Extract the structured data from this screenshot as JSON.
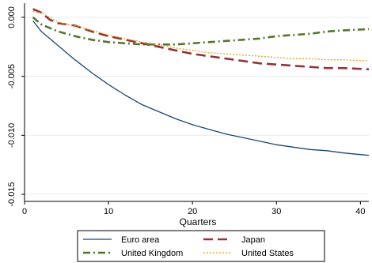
{
  "chart_data": {
    "type": "line",
    "xlabel": "Quarters",
    "ylabel": "",
    "xlim": [
      0,
      41
    ],
    "ylim": [
      -0.0156,
      0.0012
    ],
    "x_ticks": [
      0,
      10,
      20,
      30,
      40
    ],
    "x_tick_labels": [
      "0",
      "10",
      "20",
      "30",
      "40"
    ],
    "y_ticks": [
      0.0,
      -0.005,
      -0.01,
      -0.015
    ],
    "y_tick_labels": [
      "0.000",
      "-0.005",
      "-0.010",
      "-0.015"
    ],
    "grid": true,
    "legend_position": "bottom",
    "series": [
      {
        "name": "Euro area",
        "color": "#1a476f",
        "style": "solid",
        "x": [
          1,
          2,
          3,
          4,
          5,
          6,
          8,
          10,
          12,
          14,
          16,
          18,
          20,
          22,
          24,
          26,
          28,
          30,
          32,
          34,
          36,
          38,
          41
        ],
        "y": [
          -0.0003,
          -0.0012,
          -0.0018,
          -0.0024,
          -0.003,
          -0.0036,
          -0.0047,
          -0.0057,
          -0.0066,
          -0.0074,
          -0.008,
          -0.0086,
          -0.0091,
          -0.0095,
          -0.0099,
          -0.0102,
          -0.0105,
          -0.0108,
          -0.011,
          -0.0112,
          -0.0113,
          -0.0115,
          -0.0117
        ]
      },
      {
        "name": "Japan",
        "color": "#90353b",
        "style": "dashed",
        "x": [
          1,
          2,
          3,
          4,
          5,
          6,
          8,
          10,
          12,
          14,
          16,
          18,
          20,
          22,
          24,
          26,
          28,
          30,
          32,
          34,
          36,
          38,
          41
        ],
        "y": [
          0.0007,
          0.0004,
          -0.0002,
          -0.0005,
          -0.0006,
          -0.0007,
          -0.0012,
          -0.0016,
          -0.0019,
          -0.0022,
          -0.0025,
          -0.0028,
          -0.0031,
          -0.0033,
          -0.0035,
          -0.0037,
          -0.0039,
          -0.004,
          -0.0041,
          -0.0042,
          -0.0043,
          -0.0043,
          -0.0044
        ]
      },
      {
        "name": "United Kingdom",
        "color": "#55752f",
        "style": "dash-dot",
        "x": [
          1,
          2,
          3,
          4,
          5,
          6,
          8,
          10,
          12,
          14,
          16,
          18,
          20,
          22,
          24,
          26,
          28,
          30,
          32,
          34,
          36,
          38,
          41
        ],
        "y": [
          0.0,
          -0.0006,
          -0.0009,
          -0.0012,
          -0.0014,
          -0.0016,
          -0.0019,
          -0.0021,
          -0.0022,
          -0.0023,
          -0.0023,
          -0.0023,
          -0.0022,
          -0.0021,
          -0.002,
          -0.0019,
          -0.0018,
          -0.0016,
          -0.0015,
          -0.0014,
          -0.0012,
          -0.0011,
          -0.001
        ]
      },
      {
        "name": "United States",
        "color": "#e8a21b",
        "style": "dotted",
        "x": [
          1,
          2,
          3,
          4,
          5,
          6,
          8,
          10,
          12,
          14,
          16,
          18,
          20,
          22,
          24,
          26,
          28,
          30,
          32,
          34,
          36,
          38,
          41
        ],
        "y": [
          0.0005,
          0.0004,
          0.0,
          -0.0004,
          -0.0006,
          -0.0007,
          -0.0011,
          -0.0015,
          -0.0018,
          -0.0021,
          -0.0023,
          -0.0026,
          -0.0028,
          -0.003,
          -0.0031,
          -0.0032,
          -0.0033,
          -0.0034,
          -0.0035,
          -0.0035,
          -0.0036,
          -0.0036,
          -0.0037
        ]
      }
    ]
  }
}
